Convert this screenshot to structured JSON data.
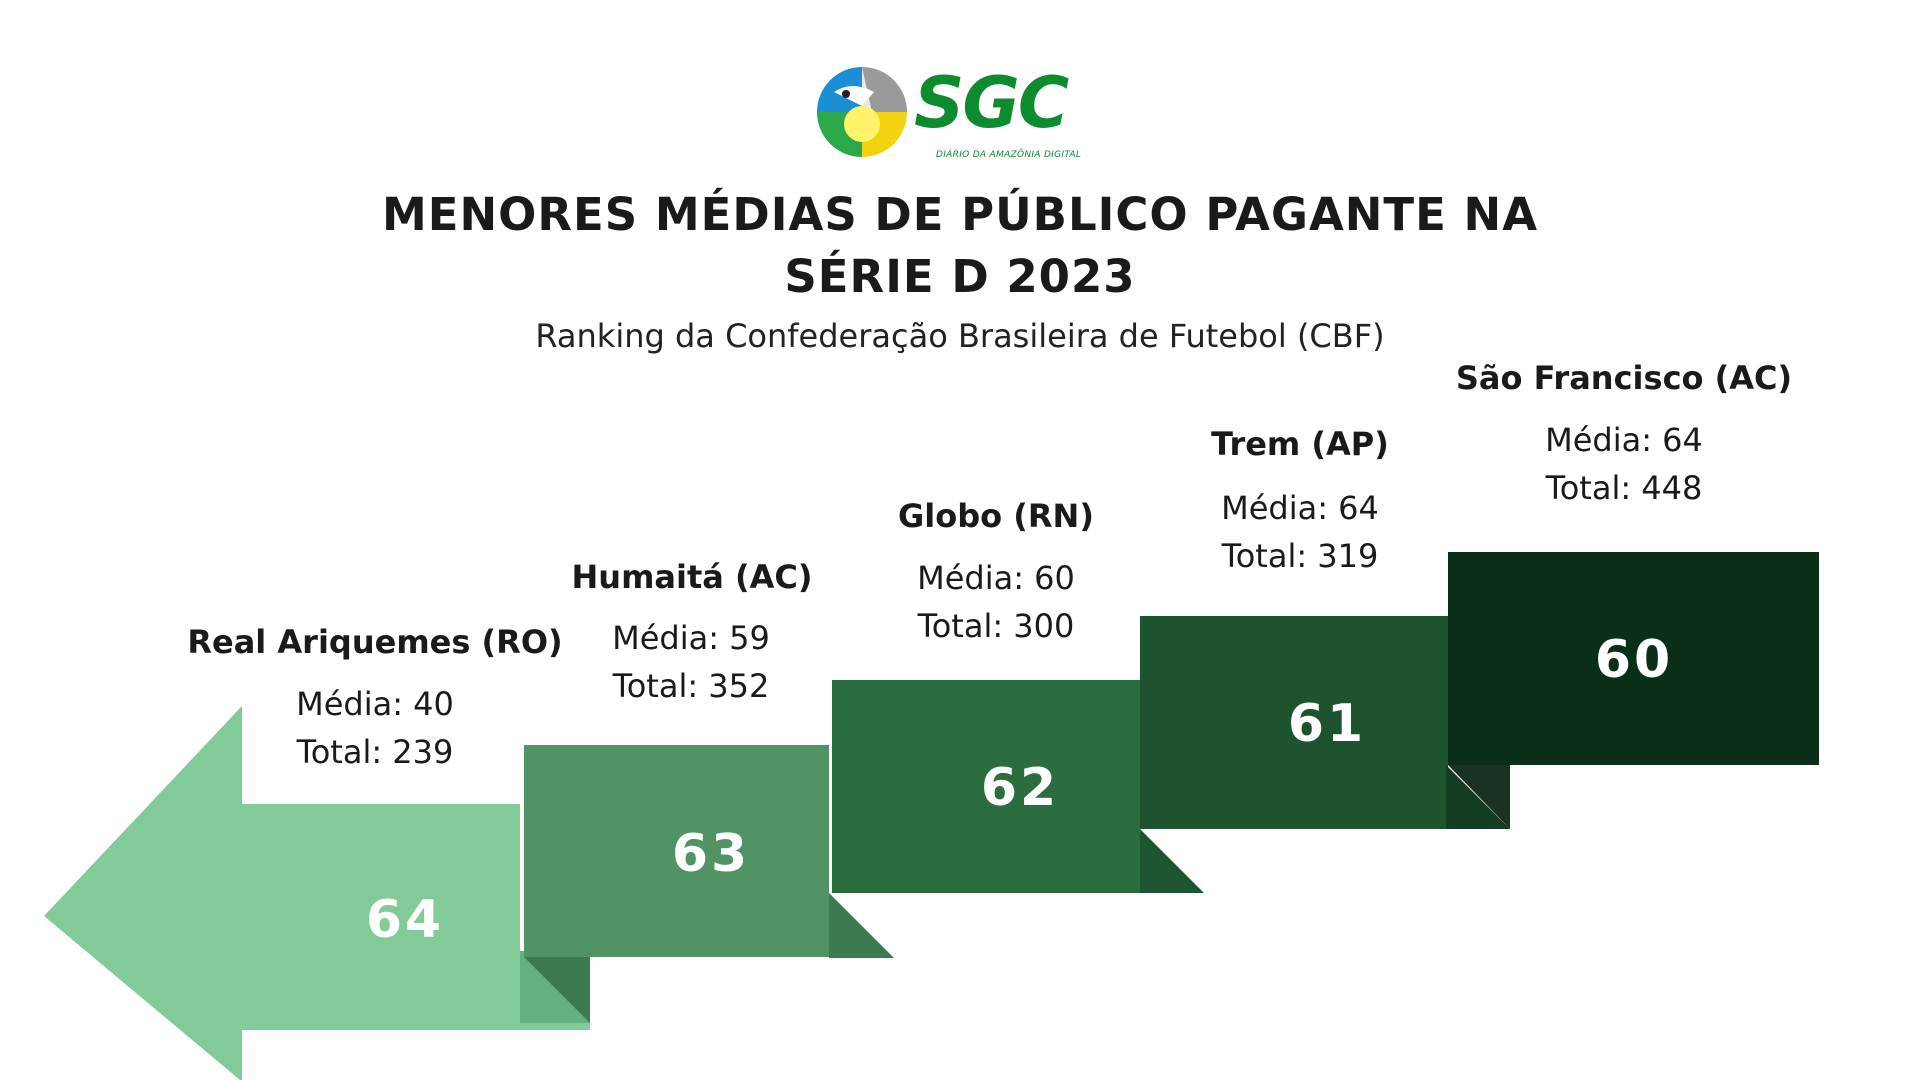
{
  "logo": {
    "word": "SGC",
    "tagline": "DIÁRIO DA AMAZÔNIA DIGITAL"
  },
  "title_line1": "MENORES MÉDIAS DE PÚBLICO PAGANTE NA",
  "title_line2": "SÉRIE D 2023",
  "subtitle": "Ranking da Confederação Brasileira de Futebol (CBF)",
  "colors": {
    "step1": "#82cb98",
    "step1_shadow": "#67b07f",
    "step2": "#519365",
    "step2_shadow": "#3c7a4f",
    "step3": "#2b6d3f",
    "step3_shadow": "#1c5530",
    "step4": "#1d532f",
    "step4_shadow": "#153d22",
    "step5": "#0a2e17",
    "step5_shadow": "#183324"
  },
  "clubs": [
    {
      "rank": "64",
      "name": "Real Ariquemes (RO)",
      "media": "Média: 40",
      "total": "Total: 239"
    },
    {
      "rank": "63",
      "name": "Humaitá (AC)",
      "media": "Média: 59",
      "total": "Total: 352"
    },
    {
      "rank": "62",
      "name": "Globo (RN)",
      "media": "Média: 60",
      "total": "Total: 300"
    },
    {
      "rank": "61",
      "name": "Trem (AP)",
      "media": "Média: 64",
      "total": "Total: 319"
    },
    {
      "rank": "60",
      "name": "São Francisco (AC)",
      "media": "Média: 64",
      "total": "Total: 448"
    }
  ]
}
